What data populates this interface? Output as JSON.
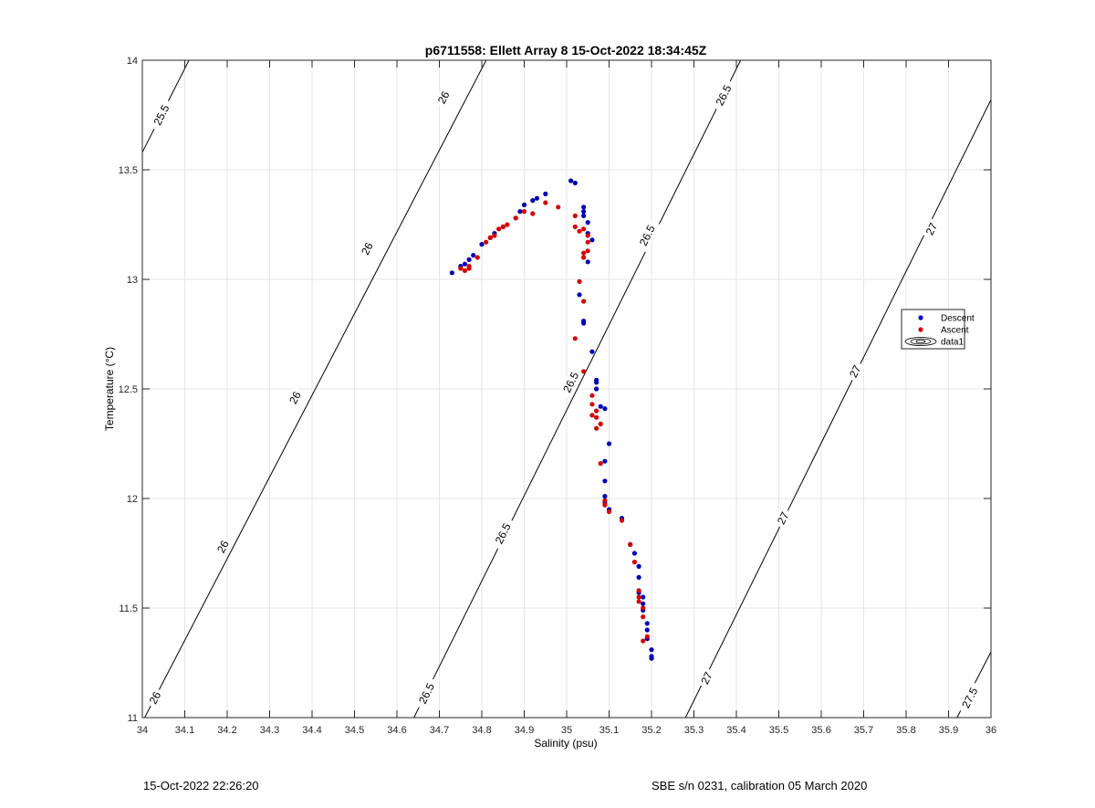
{
  "chart_data": {
    "type": "scatter",
    "title": "p6711558: Ellett Array 8 15-Oct-2022 18:34:45Z",
    "xlabel": "Salinity (psu)",
    "ylabel": "Temperature (°C)",
    "xlim": [
      34,
      36
    ],
    "ylim": [
      11,
      14
    ],
    "xticks": [
      34,
      34.1,
      34.2,
      34.3,
      34.4,
      34.5,
      34.6,
      34.7,
      34.8,
      34.9,
      35,
      35.1,
      35.2,
      35.3,
      35.4,
      35.5,
      35.6,
      35.7,
      35.8,
      35.9,
      36
    ],
    "yticks": [
      11,
      11.5,
      12,
      12.5,
      13,
      13.5,
      14
    ],
    "grid": true,
    "legend_position": "right",
    "legend": [
      {
        "label": "Descent",
        "color": "#0000b4",
        "marker": "dot"
      },
      {
        "label": "Ascent",
        "color": "#d40000",
        "marker": "dot"
      },
      {
        "label": "data1",
        "color": "#000000",
        "marker": "contour"
      }
    ],
    "series": [
      {
        "name": "Descent",
        "color": "#0000b4",
        "points": [
          [
            34.73,
            13.03
          ],
          [
            34.75,
            13.06
          ],
          [
            34.76,
            13.07
          ],
          [
            34.77,
            13.09
          ],
          [
            34.78,
            13.11
          ],
          [
            34.8,
            13.16
          ],
          [
            34.82,
            13.19
          ],
          [
            34.83,
            13.21
          ],
          [
            34.85,
            13.24
          ],
          [
            34.88,
            13.28
          ],
          [
            34.89,
            13.31
          ],
          [
            34.9,
            13.34
          ],
          [
            34.92,
            13.36
          ],
          [
            34.93,
            13.37
          ],
          [
            34.95,
            13.39
          ],
          [
            35.01,
            13.45
          ],
          [
            35.02,
            13.44
          ],
          [
            35.04,
            13.33
          ],
          [
            35.04,
            13.31
          ],
          [
            35.04,
            13.29
          ],
          [
            35.05,
            13.26
          ],
          [
            35.05,
            13.21
          ],
          [
            35.06,
            13.18
          ],
          [
            35.05,
            13.08
          ],
          [
            35.03,
            12.93
          ],
          [
            35.04,
            12.81
          ],
          [
            35.04,
            12.8
          ],
          [
            35.06,
            12.67
          ],
          [
            35.07,
            12.54
          ],
          [
            35.07,
            12.53
          ],
          [
            35.07,
            12.5
          ],
          [
            35.08,
            12.42
          ],
          [
            35.09,
            12.41
          ],
          [
            35.1,
            12.25
          ],
          [
            35.09,
            12.17
          ],
          [
            35.09,
            12.08
          ],
          [
            35.09,
            12.01
          ],
          [
            35.09,
            11.98
          ],
          [
            35.1,
            11.95
          ],
          [
            35.13,
            11.91
          ],
          [
            35.15,
            11.79
          ],
          [
            35.16,
            11.75
          ],
          [
            35.17,
            11.69
          ],
          [
            35.17,
            11.64
          ],
          [
            35.17,
            11.57
          ],
          [
            35.18,
            11.55
          ],
          [
            35.18,
            11.52
          ],
          [
            35.18,
            11.49
          ],
          [
            35.19,
            11.43
          ],
          [
            35.19,
            11.4
          ],
          [
            35.19,
            11.36
          ],
          [
            35.2,
            11.31
          ],
          [
            35.2,
            11.28
          ],
          [
            35.2,
            11.27
          ]
        ]
      },
      {
        "name": "Ascent",
        "color": "#d40000",
        "points": [
          [
            34.75,
            13.05
          ],
          [
            34.76,
            13.04
          ],
          [
            34.77,
            13.05
          ],
          [
            34.77,
            13.06
          ],
          [
            34.79,
            13.1
          ],
          [
            34.81,
            13.17
          ],
          [
            34.82,
            13.19
          ],
          [
            34.83,
            13.2
          ],
          [
            34.84,
            13.23
          ],
          [
            34.85,
            13.24
          ],
          [
            34.86,
            13.25
          ],
          [
            34.88,
            13.28
          ],
          [
            34.9,
            13.31
          ],
          [
            34.92,
            13.3
          ],
          [
            34.95,
            13.35
          ],
          [
            34.98,
            13.33
          ],
          [
            35.02,
            13.29
          ],
          [
            35.02,
            13.24
          ],
          [
            35.03,
            13.22
          ],
          [
            35.04,
            13.23
          ],
          [
            35.05,
            13.2
          ],
          [
            35.05,
            13.17
          ],
          [
            35.05,
            13.13
          ],
          [
            35.04,
            13.12
          ],
          [
            35.04,
            13.1
          ],
          [
            35.03,
            12.99
          ],
          [
            35.04,
            12.9
          ],
          [
            35.02,
            12.73
          ],
          [
            35.04,
            12.58
          ],
          [
            35.06,
            12.47
          ],
          [
            35.06,
            12.43
          ],
          [
            35.07,
            12.4
          ],
          [
            35.06,
            12.38
          ],
          [
            35.07,
            12.37
          ],
          [
            35.08,
            12.34
          ],
          [
            35.07,
            12.32
          ],
          [
            35.08,
            12.16
          ],
          [
            35.09,
            11.97
          ],
          [
            35.09,
            11.99
          ],
          [
            35.1,
            11.94
          ],
          [
            35.13,
            11.9
          ],
          [
            35.15,
            11.79
          ],
          [
            35.16,
            11.71
          ],
          [
            35.17,
            11.58
          ],
          [
            35.17,
            11.55
          ],
          [
            35.17,
            11.53
          ],
          [
            35.18,
            11.5
          ],
          [
            35.18,
            11.46
          ],
          [
            35.19,
            11.37
          ],
          [
            35.18,
            11.35
          ]
        ]
      }
    ],
    "contours": [
      {
        "level": "25.5",
        "points": [
          [
            34.0,
            13.58
          ],
          [
            34.11,
            14.0
          ]
        ],
        "labels": [
          {
            "text": "25.5",
            "s": 34.045,
            "t": 13.75
          }
        ]
      },
      {
        "level": "26",
        "points": [
          [
            34.0,
            10.98
          ],
          [
            34.81,
            14.0
          ]
        ],
        "labels": [
          {
            "text": "26",
            "s": 34.03,
            "t": 11.09
          },
          {
            "text": "26",
            "s": 34.19,
            "t": 11.78
          },
          {
            "text": "26",
            "s": 34.36,
            "t": 12.46
          },
          {
            "text": "26",
            "s": 34.53,
            "t": 13.14
          },
          {
            "text": "26",
            "s": 34.71,
            "t": 13.83
          }
        ]
      },
      {
        "level": "26.5",
        "points": [
          [
            34.64,
            11.0
          ],
          [
            35.41,
            14.0
          ]
        ],
        "labels": [
          {
            "text": "26.5",
            "s": 34.67,
            "t": 11.11
          },
          {
            "text": "26.5",
            "s": 34.85,
            "t": 11.84
          },
          {
            "text": "26.5",
            "s": 35.01,
            "t": 12.53
          },
          {
            "text": "26.5",
            "s": 35.19,
            "t": 13.2
          },
          {
            "text": "26.5",
            "s": 35.37,
            "t": 13.84
          }
        ]
      },
      {
        "level": "27",
        "points": [
          [
            35.28,
            11.0
          ],
          [
            36.0,
            13.82
          ]
        ],
        "labels": [
          {
            "text": "27",
            "s": 35.33,
            "t": 11.18
          },
          {
            "text": "27",
            "s": 35.51,
            "t": 11.91
          },
          {
            "text": "27",
            "s": 35.68,
            "t": 12.58
          },
          {
            "text": "27",
            "s": 35.86,
            "t": 13.23
          }
        ]
      },
      {
        "level": "27.5",
        "points": [
          [
            35.92,
            11.0
          ],
          [
            36.0,
            11.3
          ]
        ],
        "labels": [
          {
            "text": "27.5",
            "s": 35.95,
            "t": 11.09
          }
        ]
      }
    ]
  },
  "footer": {
    "timestamp": "15-Oct-2022 22:26:20",
    "instrument": "SBE s/n 0231, calibration 05 March 2020"
  }
}
